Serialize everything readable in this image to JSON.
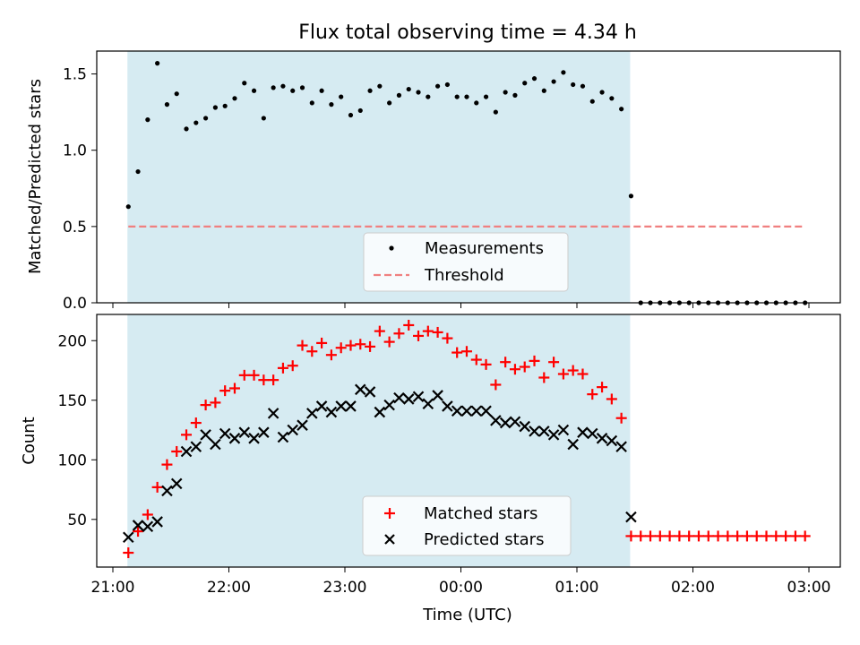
{
  "title": "Flux total observing time = 4.34 h",
  "chart_data": [
    {
      "type": "scatter",
      "ylabel": "Matched/Predicted stars",
      "ylim": [
        0,
        1.65
      ],
      "yticks": [
        0.0,
        0.5,
        1.0,
        1.5
      ],
      "ytick_labels": [
        "0.0",
        "0.5",
        "1.0",
        "1.5"
      ],
      "threshold": 0.5,
      "threshold_color": "#f08080",
      "shaded_span_color": "#add8e6",
      "legend_placement": "lower center",
      "series": [
        {
          "name": "Measurements",
          "color": "#000000",
          "x": [
            "21:08",
            "21:13",
            "21:18",
            "21:23",
            "21:28",
            "21:33",
            "21:38",
            "21:43",
            "21:48",
            "21:53",
            "21:58",
            "22:03",
            "22:08",
            "22:13",
            "22:18",
            "22:23",
            "22:28",
            "22:33",
            "22:38",
            "22:43",
            "22:48",
            "22:53",
            "22:58",
            "23:03",
            "23:08",
            "23:13",
            "23:18",
            "23:23",
            "23:28",
            "23:33",
            "23:38",
            "23:43",
            "23:48",
            "23:53",
            "23:58",
            "00:03",
            "00:08",
            "00:13",
            "00:18",
            "00:23",
            "00:28",
            "00:33",
            "00:38",
            "00:43",
            "00:48",
            "00:53",
            "00:58",
            "01:03",
            "01:08",
            "01:13",
            "01:18",
            "01:23",
            "01:28",
            "01:33",
            "01:38",
            "01:43",
            "01:48",
            "01:53",
            "01:58",
            "02:03",
            "02:08",
            "02:13",
            "02:18",
            "02:23",
            "02:28",
            "02:33",
            "02:38",
            "02:43",
            "02:48",
            "02:53",
            "02:58"
          ],
          "y": [
            0.63,
            0.86,
            1.2,
            1.57,
            1.3,
            1.37,
            1.14,
            1.18,
            1.21,
            1.28,
            1.29,
            1.34,
            1.44,
            1.39,
            1.21,
            1.41,
            1.42,
            1.39,
            1.41,
            1.31,
            1.39,
            1.3,
            1.35,
            1.23,
            1.26,
            1.39,
            1.42,
            1.31,
            1.36,
            1.4,
            1.38,
            1.35,
            1.42,
            1.43,
            1.35,
            1.35,
            1.31,
            1.35,
            1.25,
            1.38,
            1.36,
            1.44,
            1.47,
            1.39,
            1.45,
            1.51,
            1.43,
            1.42,
            1.32,
            1.38,
            1.34,
            1.27,
            0.7,
            0,
            0,
            0,
            0,
            0,
            0,
            0,
            0,
            0,
            0,
            0,
            0,
            0,
            0,
            0,
            0,
            0,
            0
          ]
        },
        {
          "name": "Threshold",
          "color": "#f08080",
          "x": [
            "21:08",
            "02:58"
          ],
          "y": [
            0.5,
            0.5
          ]
        }
      ]
    },
    {
      "type": "scatter",
      "xlabel": "Time (UTC)",
      "ylabel": "Count",
      "ylim": [
        10,
        222
      ],
      "yticks": [
        50,
        100,
        150,
        200
      ],
      "ytick_labels": [
        "50",
        "100",
        "150",
        "200"
      ],
      "xticks": [
        "21:00",
        "22:00",
        "23:00",
        "00:00",
        "01:00",
        "02:00",
        "03:00"
      ],
      "legend_placement": "lower center",
      "series": [
        {
          "name": "Matched stars",
          "marker": "+",
          "color": "#ff0000",
          "x": [
            "21:08",
            "21:13",
            "21:18",
            "21:23",
            "21:28",
            "21:33",
            "21:38",
            "21:43",
            "21:48",
            "21:53",
            "21:58",
            "22:03",
            "22:08",
            "22:13",
            "22:18",
            "22:23",
            "22:28",
            "22:33",
            "22:38",
            "22:43",
            "22:48",
            "22:53",
            "22:58",
            "23:03",
            "23:08",
            "23:13",
            "23:18",
            "23:23",
            "23:28",
            "23:33",
            "23:38",
            "23:43",
            "23:48",
            "23:53",
            "23:58",
            "00:03",
            "00:08",
            "00:13",
            "00:18",
            "00:23",
            "00:28",
            "00:33",
            "00:38",
            "00:43",
            "00:48",
            "00:53",
            "00:58",
            "01:03",
            "01:08",
            "01:13",
            "01:18",
            "01:23",
            "01:28",
            "01:33",
            "01:38",
            "01:43",
            "01:48",
            "01:53",
            "01:58",
            "02:03",
            "02:08",
            "02:13",
            "02:18",
            "02:23",
            "02:28",
            "02:33",
            "02:38",
            "02:43",
            "02:48",
            "02:53",
            "02:58"
          ],
          "y": [
            22,
            40,
            54,
            77,
            96,
            107,
            121,
            131,
            146,
            148,
            158,
            160,
            171,
            171,
            167,
            167,
            177,
            179,
            196,
            191,
            198,
            188,
            194,
            196,
            197,
            195,
            208,
            199,
            206,
            213,
            204,
            208,
            207,
            202,
            190,
            191,
            184,
            180,
            163,
            182,
            176,
            178,
            183,
            169,
            182,
            172,
            175,
            172,
            155,
            161,
            151,
            135,
            36,
            36,
            36,
            36,
            36,
            36,
            36,
            36,
            36,
            36,
            36,
            36,
            36,
            36,
            36,
            36,
            36,
            36,
            36
          ]
        },
        {
          "name": "Predicted stars",
          "marker": "x",
          "color": "#000000",
          "x": [
            "21:08",
            "21:13",
            "21:18",
            "21:23",
            "21:28",
            "21:33",
            "21:38",
            "21:43",
            "21:48",
            "21:53",
            "21:58",
            "22:03",
            "22:08",
            "22:13",
            "22:18",
            "22:23",
            "22:28",
            "22:33",
            "22:38",
            "22:43",
            "22:48",
            "22:53",
            "22:58",
            "23:03",
            "23:08",
            "23:13",
            "23:18",
            "23:23",
            "23:28",
            "23:33",
            "23:38",
            "23:43",
            "23:48",
            "23:53",
            "23:58",
            "00:03",
            "00:08",
            "00:13",
            "00:18",
            "00:23",
            "00:28",
            "00:33",
            "00:38",
            "00:43",
            "00:48",
            "00:53",
            "00:58",
            "01:03",
            "01:08",
            "01:13",
            "01:18",
            "01:23",
            "01:28"
          ],
          "y": [
            35,
            45,
            44,
            48,
            74,
            80,
            107,
            111,
            121,
            113,
            122,
            118,
            123,
            118,
            123,
            139,
            119,
            125,
            129,
            139,
            145,
            140,
            145,
            145,
            159,
            157,
            140,
            146,
            152,
            151,
            153,
            147,
            154,
            145,
            141,
            141,
            141,
            141,
            133,
            131,
            132,
            128,
            124,
            124,
            121,
            125,
            113,
            123,
            122,
            118,
            116,
            111,
            52
          ]
        }
      ]
    }
  ]
}
